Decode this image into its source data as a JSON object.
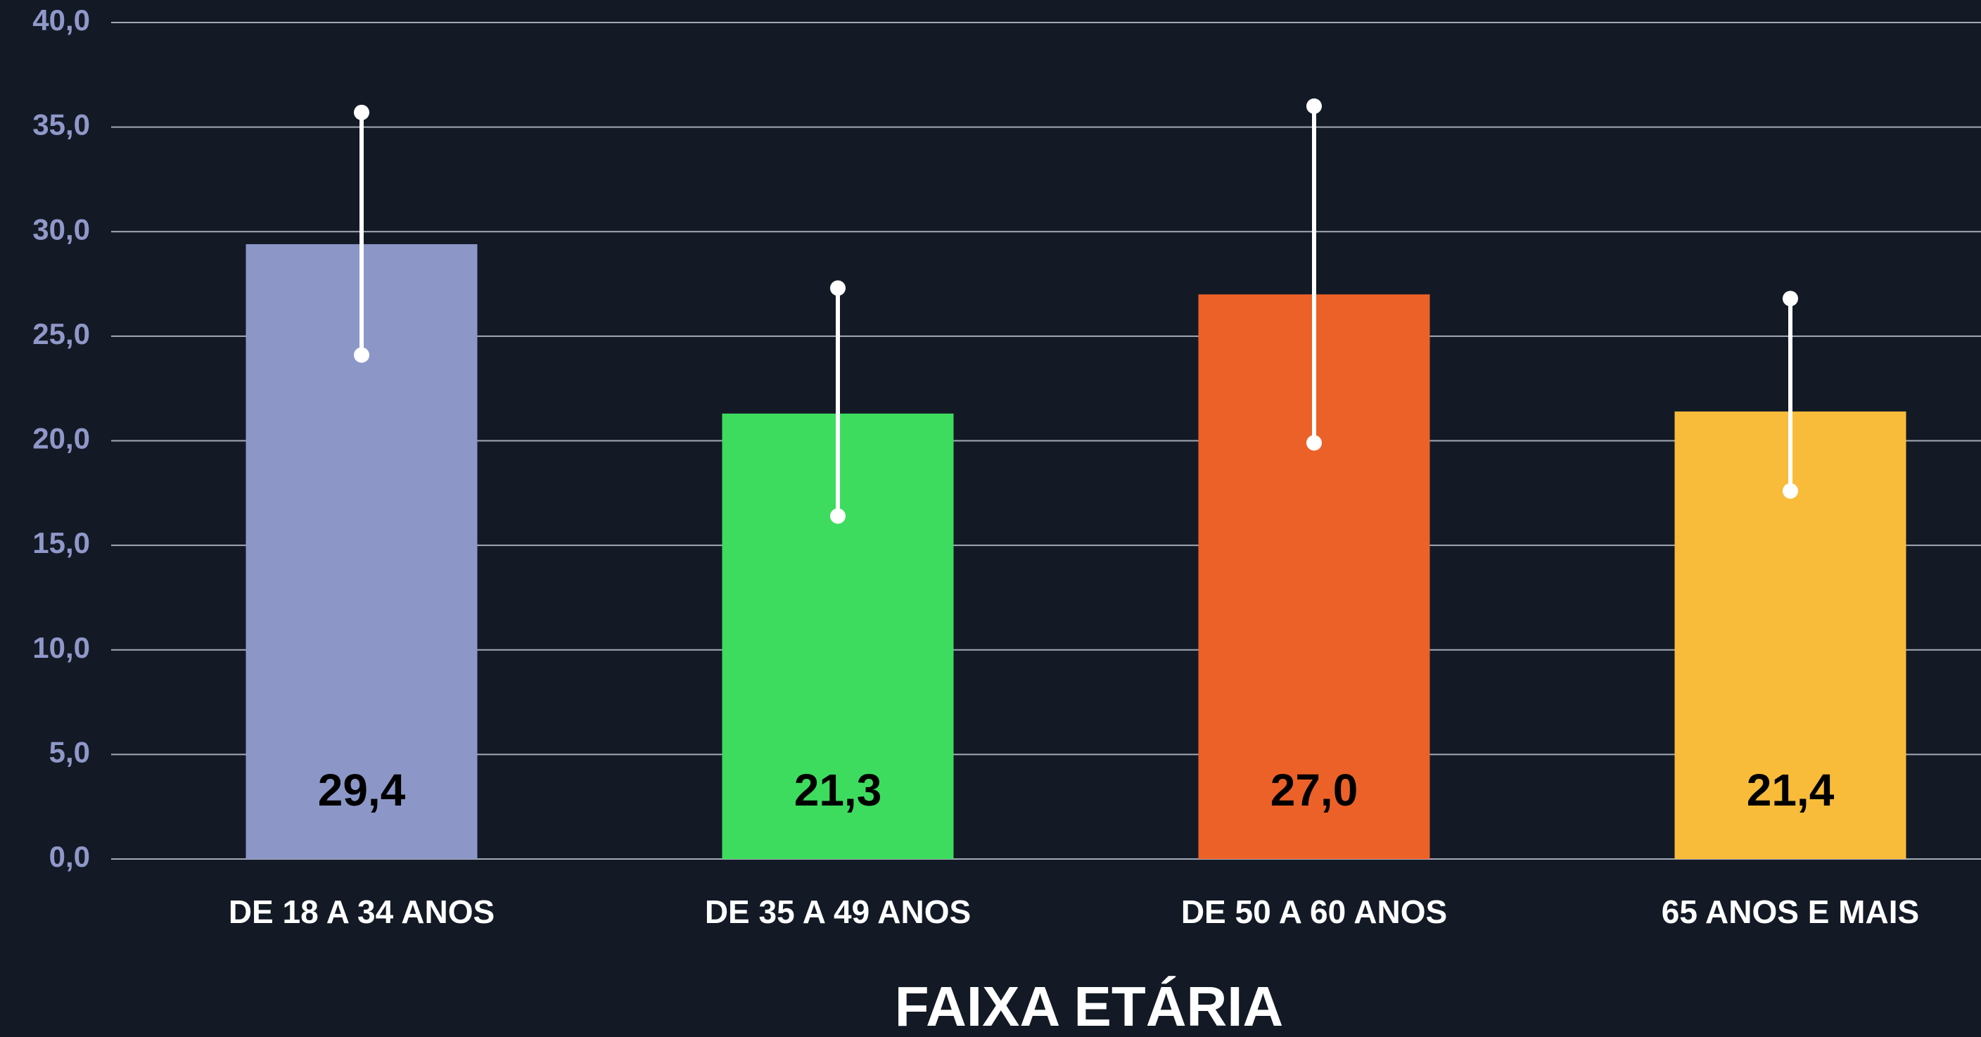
{
  "chart_data": {
    "type": "bar",
    "x_label": "FAIXA ETÁRIA",
    "categories": [
      "DE 18 A 34 ANOS",
      "DE 35 A 49 ANOS",
      "DE 50 A 60 ANOS",
      "65 ANOS E MAIS"
    ],
    "values": [
      29.4,
      21.3,
      27.0,
      21.4
    ],
    "value_labels": [
      "29,4",
      "21,3",
      "27,0",
      "21,4"
    ],
    "error_low": [
      24.1,
      16.4,
      19.9,
      17.6
    ],
    "error_high": [
      35.7,
      27.3,
      36.0,
      26.8
    ],
    "colors": [
      "#8c97c8",
      "#3ddc5f",
      "#ec6128",
      "#f8bc3a"
    ],
    "error_color": "#ffffff",
    "ylim": [
      0,
      40
    ],
    "yticks": [
      {
        "value": 0,
        "label": "0,0"
      },
      {
        "value": 5,
        "label": "5,0"
      },
      {
        "value": 10,
        "label": "10,0"
      },
      {
        "value": 15,
        "label": "15,0"
      },
      {
        "value": 20,
        "label": "20,0"
      },
      {
        "value": 25,
        "label": "25,0"
      },
      {
        "value": 30,
        "label": "30,0"
      },
      {
        "value": 35,
        "label": "35,0"
      },
      {
        "value": 40,
        "label": "40,0"
      }
    ],
    "grid": true
  }
}
